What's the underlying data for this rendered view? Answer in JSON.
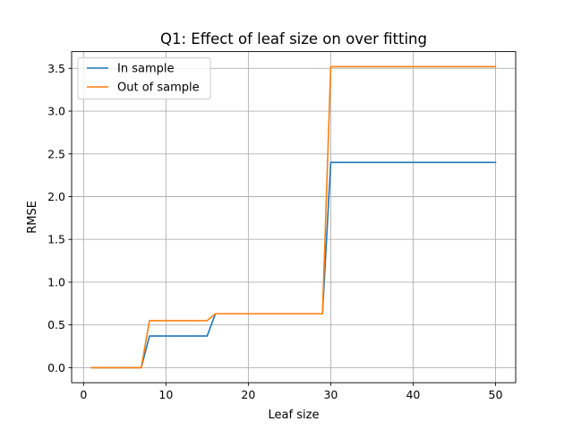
{
  "chart_data": {
    "type": "line",
    "title": "Q1: Effect of leaf size on over fitting",
    "xlabel": "Leaf size",
    "ylabel": "RMSE",
    "xlim": [
      -1.45,
      52.45
    ],
    "ylim": [
      -0.176,
      3.696
    ],
    "xticks": [
      0,
      10,
      20,
      30,
      40,
      50
    ],
    "yticks": [
      0.0,
      0.5,
      1.0,
      1.5,
      2.0,
      2.5,
      3.0,
      3.5
    ],
    "grid": true,
    "legend_position": "upper-left",
    "x": [
      1,
      7,
      8,
      15,
      16,
      29,
      30,
      50
    ],
    "series": [
      {
        "name": "In sample",
        "color": "#1f77b4",
        "values": [
          0.0,
          0.0,
          0.37,
          0.37,
          0.63,
          0.63,
          2.4,
          2.4
        ]
      },
      {
        "name": "Out of sample",
        "color": "#ff7f0e",
        "values": [
          0.0,
          0.0,
          0.55,
          0.55,
          0.63,
          0.63,
          3.52,
          3.52
        ]
      }
    ]
  }
}
